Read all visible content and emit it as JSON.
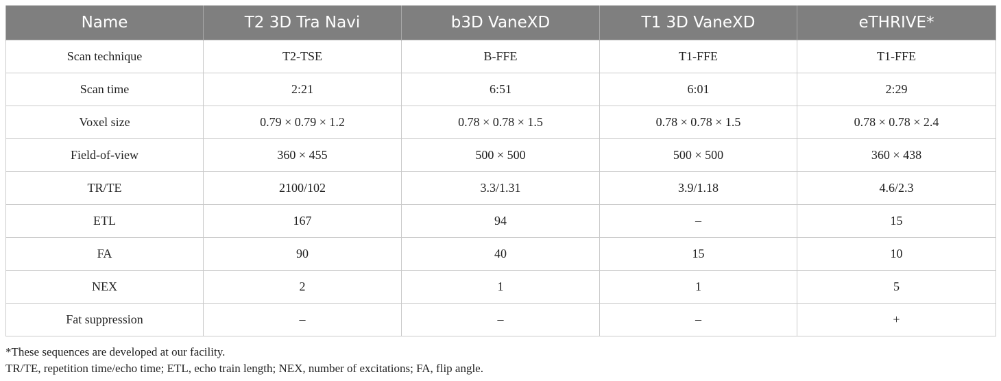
{
  "table": {
    "headers": [
      "Name",
      "T2 3D Tra Navi",
      "b3D VaneXD",
      "T1 3D VaneXD",
      "eTHRIVE*"
    ],
    "rows": [
      [
        "Scan technique",
        "T2-TSE",
        "B-FFE",
        "T1-FFE",
        "T1-FFE"
      ],
      [
        "Scan time",
        "2:21",
        "6:51",
        "6:01",
        "2:29"
      ],
      [
        "Voxel size",
        "0.79 × 0.79 × 1.2",
        "0.78 × 0.78 × 1.5",
        "0.78 × 0.78 × 1.5",
        "0.78 × 0.78 × 2.4"
      ],
      [
        "Field-of-view",
        "360 × 455",
        "500 × 500",
        "500 × 500",
        "360 × 438"
      ],
      [
        "TR/TE",
        "2100/102",
        "3.3/1.31",
        "3.9/1.18",
        "4.6/2.3"
      ],
      [
        "ETL",
        "167",
        "94",
        "–",
        "15"
      ],
      [
        "FA",
        "90",
        "40",
        "15",
        "10"
      ],
      [
        "NEX",
        "2",
        "1",
        "1",
        "5"
      ],
      [
        "Fat suppression",
        "–",
        "–",
        "–",
        "+"
      ]
    ]
  },
  "footnotes": {
    "asterisk": "*These sequences are developed at our facility.",
    "abbreviations": "TR/TE, repetition time/echo time; ETL, echo train length; NEX, number of excitations; FA, flip angle."
  },
  "colors": {
    "header_bg": "#7f7f7f",
    "header_text": "#ffffff",
    "grid_line": "#c9c9c9"
  }
}
